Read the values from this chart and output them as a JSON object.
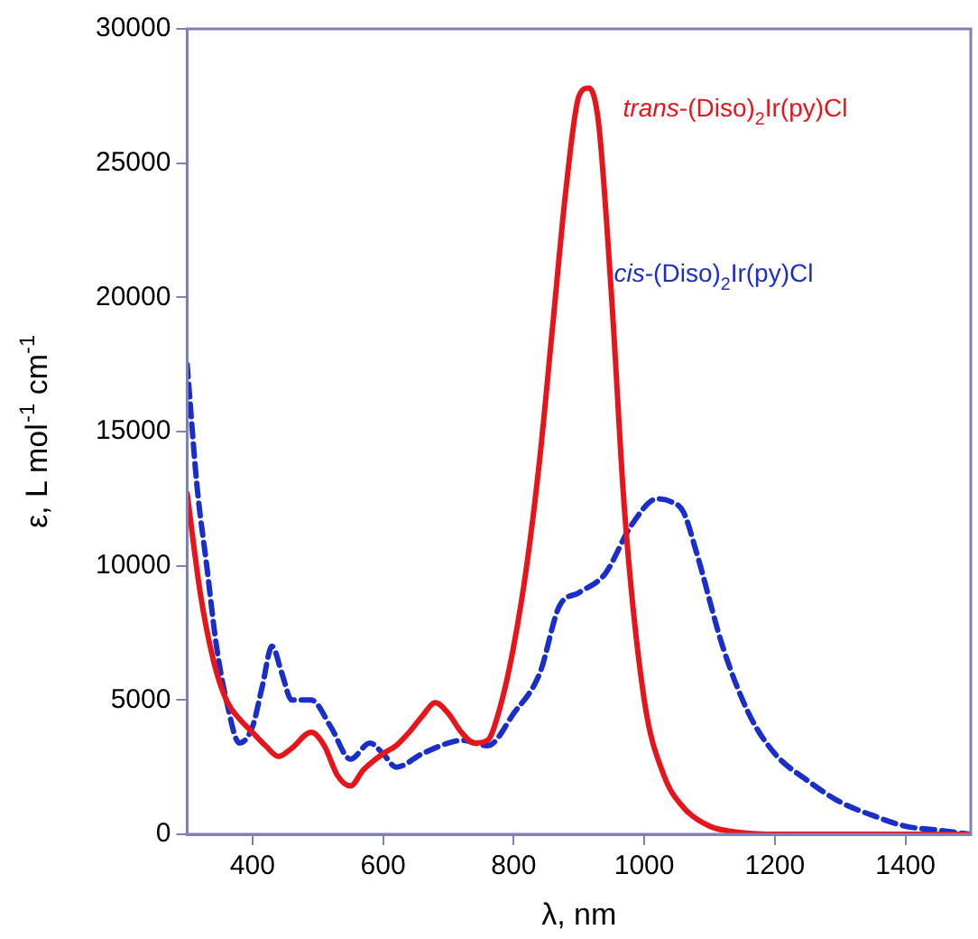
{
  "chart_data": {
    "type": "line",
    "xlabel": "λ, nm",
    "ylabel": "ε, L mol$^{-1}$ cm$^{-1}$",
    "xlim": [
      300,
      1500
    ],
    "xticks": [
      400,
      600,
      800,
      1000,
      1200,
      1400
    ],
    "ylim": [
      0,
      30000
    ],
    "yticks": [
      0,
      5000,
      10000,
      15000,
      20000,
      25000,
      30000
    ],
    "grid": false,
    "legend": false,
    "marker": "none",
    "series": [
      {
        "name": "trans-(Diso)$_{2}$Ir(py)Cl",
        "color": "#e8141c",
        "line_style": "solid",
        "x": [
          300,
          320,
          340,
          360,
          380,
          400,
          420,
          440,
          460,
          490,
          510,
          530,
          550,
          570,
          600,
          620,
          640,
          660,
          680,
          700,
          720,
          740,
          760,
          780,
          800,
          820,
          840,
          860,
          880,
          900,
          915,
          930,
          950,
          970,
          1000,
          1030,
          1060,
          1100,
          1150,
          1200,
          1300,
          1400,
          1500
        ],
        "values": [
          12700,
          9000,
          6500,
          5000,
          4300,
          3800,
          3300,
          2900,
          3200,
          3800,
          3300,
          2200,
          1800,
          2400,
          3000,
          3300,
          3800,
          4400,
          4900,
          4500,
          3800,
          3400,
          3500,
          4800,
          7000,
          10000,
          14000,
          19000,
          24000,
          27500,
          27800,
          26500,
          20000,
          12000,
          5000,
          2200,
          1000,
          300,
          60,
          0,
          0,
          0,
          0
        ]
      },
      {
        "name": "cis-(Diso)$_{2}$Ir(py)Cl",
        "color": "#1a2ecc",
        "line_style": "dashed",
        "x": [
          300,
          315,
          330,
          345,
          360,
          380,
          400,
          415,
          430,
          445,
          460,
          490,
          520,
          550,
          580,
          600,
          620,
          660,
          700,
          720,
          760,
          800,
          840,
          870,
          900,
          940,
          980,
          1020,
          1040,
          1060,
          1080,
          1120,
          1160,
          1200,
          1250,
          1300,
          1350,
          1400,
          1450,
          1500
        ],
        "values": [
          17500,
          13000,
          10000,
          7000,
          5000,
          3400,
          4000,
          5500,
          7000,
          6000,
          5000,
          5000,
          4000,
          2800,
          3400,
          3000,
          2500,
          3000,
          3400,
          3500,
          3300,
          4500,
          6000,
          8500,
          9000,
          9700,
          11500,
          12500,
          12400,
          12000,
          10500,
          7000,
          4500,
          3000,
          2000,
          1200,
          700,
          300,
          150,
          0
        ]
      }
    ]
  }
}
